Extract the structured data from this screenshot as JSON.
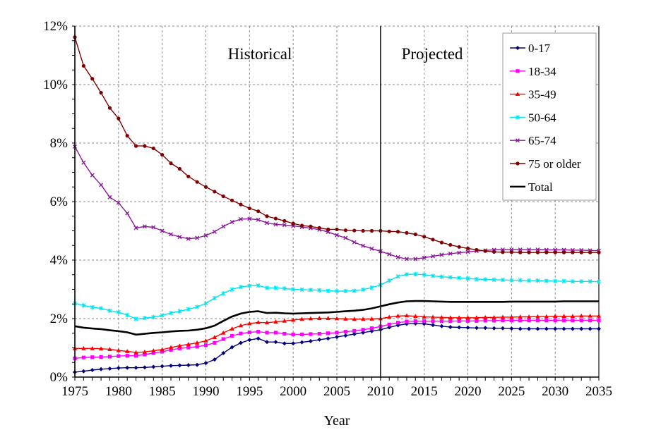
{
  "chart_data": {
    "type": "line",
    "title": "",
    "xlabel": "Year",
    "ylabel": "",
    "xlim": [
      1975,
      2035
    ],
    "ylim": [
      0,
      12
    ],
    "y_unit": "%",
    "grid": true,
    "legend_position": "top-right",
    "x_ticks": [
      "1975",
      "1980",
      "1985",
      "1990",
      "1995",
      "2000",
      "2005",
      "2010",
      "2015",
      "2020",
      "2025",
      "2030",
      "2035"
    ],
    "y_ticks": [
      "0%",
      "2%",
      "4%",
      "6%",
      "8%",
      "10%",
      "12%"
    ],
    "annotations": [
      {
        "text": "Historical",
        "x": 1992
      },
      {
        "text": "Projected",
        "x": 2016
      }
    ],
    "divider_year": 2010,
    "x": [
      1975,
      1976,
      1977,
      1978,
      1979,
      1980,
      1981,
      1982,
      1983,
      1984,
      1985,
      1986,
      1987,
      1988,
      1989,
      1990,
      1991,
      1992,
      1993,
      1994,
      1995,
      1996,
      1997,
      1998,
      1999,
      2000,
      2001,
      2002,
      2003,
      2004,
      2005,
      2006,
      2007,
      2008,
      2009,
      2010,
      2011,
      2012,
      2013,
      2014,
      2015,
      2016,
      2017,
      2018,
      2019,
      2020,
      2021,
      2022,
      2023,
      2024,
      2025,
      2026,
      2027,
      2028,
      2029,
      2030,
      2031,
      2032,
      2033,
      2034,
      2035
    ],
    "series": [
      {
        "name": "0-17",
        "color": "#000080",
        "marker": "diamond",
        "values": [
          0.17,
          0.2,
          0.24,
          0.27,
          0.29,
          0.31,
          0.32,
          0.32,
          0.33,
          0.35,
          0.37,
          0.39,
          0.4,
          0.41,
          0.42,
          0.48,
          0.6,
          0.82,
          1.02,
          1.17,
          1.27,
          1.32,
          1.2,
          1.2,
          1.15,
          1.15,
          1.19,
          1.23,
          1.28,
          1.32,
          1.37,
          1.42,
          1.47,
          1.52,
          1.57,
          1.62,
          1.7,
          1.77,
          1.82,
          1.83,
          1.82,
          1.78,
          1.74,
          1.71,
          1.7,
          1.69,
          1.68,
          1.68,
          1.67,
          1.67,
          1.66,
          1.65,
          1.65,
          1.65,
          1.65,
          1.65,
          1.65,
          1.65,
          1.65,
          1.65,
          1.65
        ]
      },
      {
        "name": "18-34",
        "color": "#ff00ff",
        "marker": "square",
        "values": [
          0.64,
          0.67,
          0.68,
          0.69,
          0.7,
          0.72,
          0.73,
          0.73,
          0.77,
          0.82,
          0.87,
          0.93,
          0.98,
          1.01,
          1.04,
          1.09,
          1.17,
          1.3,
          1.41,
          1.49,
          1.53,
          1.55,
          1.52,
          1.52,
          1.48,
          1.46,
          1.46,
          1.47,
          1.48,
          1.5,
          1.52,
          1.55,
          1.58,
          1.62,
          1.67,
          1.73,
          1.8,
          1.86,
          1.9,
          1.91,
          1.91,
          1.91,
          1.91,
          1.91,
          1.92,
          1.92,
          1.92,
          1.93,
          1.93,
          1.94,
          1.94,
          1.94,
          1.94,
          1.94,
          1.94,
          1.94,
          1.94,
          1.94,
          1.94,
          1.94,
          1.94
        ]
      },
      {
        "name": "35-49",
        "color": "#ff0000",
        "marker": "triangle",
        "values": [
          0.98,
          0.98,
          0.98,
          0.97,
          0.95,
          0.91,
          0.88,
          0.84,
          0.86,
          0.9,
          0.94,
          1.01,
          1.07,
          1.12,
          1.17,
          1.24,
          1.36,
          1.51,
          1.65,
          1.76,
          1.83,
          1.87,
          1.86,
          1.89,
          1.92,
          1.95,
          1.98,
          2.0,
          2.01,
          2.01,
          2.0,
          1.99,
          1.98,
          1.98,
          1.99,
          2.0,
          2.05,
          2.09,
          2.1,
          2.08,
          2.06,
          2.05,
          2.04,
          2.03,
          2.03,
          2.03,
          2.03,
          2.04,
          2.04,
          2.05,
          2.05,
          2.06,
          2.06,
          2.07,
          2.07,
          2.08,
          2.08,
          2.08,
          2.09,
          2.09,
          2.09
        ]
      },
      {
        "name": "50-64",
        "color": "#00e5ee",
        "marker": "star",
        "values": [
          2.52,
          2.45,
          2.39,
          2.35,
          2.27,
          2.22,
          2.12,
          1.99,
          2.02,
          2.05,
          2.11,
          2.19,
          2.25,
          2.32,
          2.4,
          2.52,
          2.7,
          2.86,
          3.0,
          3.08,
          3.12,
          3.13,
          3.05,
          3.05,
          3.03,
          3.0,
          2.99,
          2.98,
          2.97,
          2.95,
          2.94,
          2.94,
          2.95,
          2.99,
          3.06,
          3.15,
          3.3,
          3.44,
          3.51,
          3.52,
          3.5,
          3.46,
          3.43,
          3.41,
          3.39,
          3.37,
          3.35,
          3.34,
          3.33,
          3.32,
          3.31,
          3.31,
          3.3,
          3.3,
          3.29,
          3.28,
          3.28,
          3.27,
          3.27,
          3.27,
          3.26
        ]
      },
      {
        "name": "65-74",
        "color": "#8b1a9b",
        "marker": "x",
        "values": [
          7.88,
          7.33,
          6.9,
          6.57,
          6.15,
          5.96,
          5.6,
          5.1,
          5.15,
          5.12,
          5.0,
          4.88,
          4.79,
          4.73,
          4.76,
          4.84,
          4.97,
          5.15,
          5.3,
          5.4,
          5.41,
          5.38,
          5.27,
          5.22,
          5.2,
          5.17,
          5.13,
          5.09,
          5.04,
          4.96,
          4.85,
          4.76,
          4.61,
          4.49,
          4.39,
          4.3,
          4.2,
          4.1,
          4.04,
          4.04,
          4.08,
          4.13,
          4.18,
          4.22,
          4.25,
          4.28,
          4.31,
          4.33,
          4.35,
          4.36,
          4.36,
          4.36,
          4.36,
          4.36,
          4.35,
          4.35,
          4.35,
          4.34,
          4.34,
          4.33,
          4.32
        ]
      },
      {
        "name": "75 or older",
        "color": "#800000",
        "marker": "circle",
        "values": [
          11.62,
          10.64,
          10.2,
          9.72,
          9.2,
          8.84,
          8.25,
          7.9,
          7.9,
          7.82,
          7.6,
          7.31,
          7.12,
          6.86,
          6.67,
          6.5,
          6.34,
          6.18,
          6.04,
          5.9,
          5.77,
          5.67,
          5.5,
          5.42,
          5.34,
          5.25,
          5.18,
          5.15,
          5.1,
          5.05,
          5.05,
          5.02,
          5.01,
          5.0,
          5.0,
          5.0,
          4.98,
          4.97,
          4.93,
          4.88,
          4.8,
          4.7,
          4.6,
          4.52,
          4.45,
          4.4,
          4.35,
          4.31,
          4.28,
          4.27,
          4.27,
          4.26,
          4.26,
          4.26,
          4.26,
          4.26,
          4.26,
          4.26,
          4.26,
          4.26,
          4.26
        ]
      },
      {
        "name": "Total",
        "color": "#000000",
        "marker": "none",
        "values": [
          1.74,
          1.69,
          1.66,
          1.64,
          1.6,
          1.57,
          1.53,
          1.45,
          1.48,
          1.51,
          1.53,
          1.56,
          1.58,
          1.59,
          1.62,
          1.67,
          1.76,
          1.92,
          2.07,
          2.17,
          2.23,
          2.25,
          2.19,
          2.2,
          2.18,
          2.17,
          2.18,
          2.19,
          2.2,
          2.21,
          2.23,
          2.25,
          2.27,
          2.3,
          2.35,
          2.42,
          2.49,
          2.55,
          2.59,
          2.6,
          2.6,
          2.59,
          2.58,
          2.57,
          2.57,
          2.57,
          2.57,
          2.57,
          2.57,
          2.57,
          2.58,
          2.58,
          2.58,
          2.58,
          2.58,
          2.58,
          2.59,
          2.59,
          2.59,
          2.59,
          2.59
        ]
      }
    ]
  }
}
